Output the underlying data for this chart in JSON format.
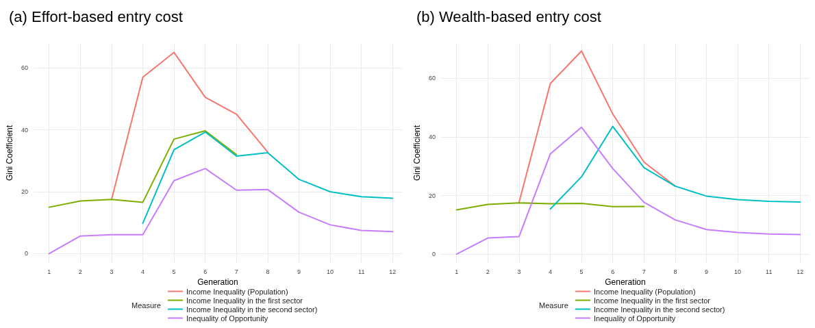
{
  "chart_data": [
    {
      "type": "line",
      "title": "(a) Effort-based entry cost",
      "xlabel": "Generation",
      "ylabel": "Gini Coefficient",
      "legend_title": "Measure",
      "legend": "bottom",
      "grid": true,
      "x": [
        1,
        2,
        3,
        4,
        5,
        6,
        7,
        8,
        9,
        10,
        11,
        12
      ],
      "xlim": [
        0.5,
        12.3
      ],
      "xticks": [
        1,
        2,
        3,
        4,
        5,
        6,
        7,
        8,
        9,
        10,
        11,
        12
      ],
      "ylim": [
        -3,
        68
      ],
      "yticks": [
        0,
        20,
        40,
        60
      ],
      "series": [
        {
          "name": "Income Inequality (Population)",
          "color": "#f8766d",
          "values": [
            null,
            null,
            17.5,
            57,
            65,
            50.5,
            45,
            32.8,
            null,
            null,
            null,
            null
          ]
        },
        {
          "name": "Income Inequality in the first sector",
          "color": "#7cae00",
          "values": [
            15,
            17,
            17.5,
            16.6,
            37,
            39.7,
            32,
            null,
            null,
            null,
            null,
            null
          ]
        },
        {
          "name": "Income Inequality in the second sector)",
          "color": "#00bfc4",
          "values": [
            null,
            null,
            null,
            9.8,
            33.6,
            39.3,
            31.5,
            32.6,
            24,
            20,
            18.4,
            17.9
          ]
        },
        {
          "name": "Inequality of Opportunity",
          "color": "#c77cff",
          "values": [
            0,
            5.7,
            6.1,
            6.1,
            23.6,
            27.5,
            20.5,
            20.7,
            13.4,
            9.3,
            7.5,
            7.1
          ]
        }
      ]
    },
    {
      "type": "line",
      "title": "(b) Wealth-based entry cost",
      "xlabel": "Generation",
      "ylabel": "Gini Coefficient",
      "legend_title": "Measure",
      "legend": "bottom",
      "grid": true,
      "x": [
        1,
        2,
        3,
        4,
        5,
        6,
        7,
        8,
        9,
        10,
        11,
        12
      ],
      "xlim": [
        0.5,
        12.3
      ],
      "xticks": [
        1,
        2,
        3,
        4,
        5,
        6,
        7,
        8,
        9,
        10,
        11,
        12
      ],
      "ylim": [
        -3,
        72
      ],
      "yticks": [
        0,
        20,
        40,
        60
      ],
      "series": [
        {
          "name": "Income Inequality (Population)",
          "color": "#f8766d",
          "values": [
            null,
            null,
            17.7,
            58.2,
            69.3,
            47.8,
            31.4,
            23.2,
            null,
            null,
            null,
            null
          ]
        },
        {
          "name": "Income Inequality in the first sector",
          "color": "#7cae00",
          "values": [
            15.1,
            17,
            17.5,
            17.2,
            17.3,
            16.2,
            16.3,
            null,
            null,
            null,
            null,
            null
          ]
        },
        {
          "name": "Income Inequality in the second sector)",
          "color": "#00bfc4",
          "values": [
            null,
            null,
            null,
            15.4,
            26.4,
            43.6,
            29.5,
            23.2,
            19.8,
            18.6,
            18,
            17.8
          ]
        },
        {
          "name": "Inequality of Opportunity",
          "color": "#c77cff",
          "values": [
            0,
            5.5,
            6,
            34.2,
            43.3,
            29.2,
            17.7,
            11.7,
            8.4,
            7.4,
            6.9,
            6.7
          ]
        }
      ]
    }
  ]
}
